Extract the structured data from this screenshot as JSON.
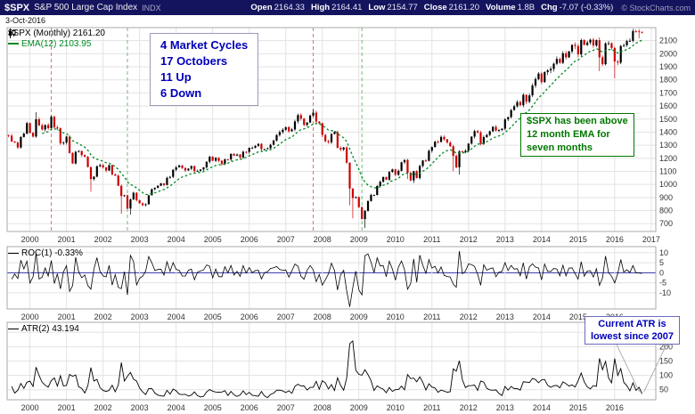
{
  "header": {
    "symbol": "$SPX",
    "name": "S&P 500 Large Cap Index",
    "exchange": "INDX",
    "date": "3-Oct-2016",
    "credit": "© StockCharts.com",
    "quote": [
      {
        "label": "Open",
        "value": "2164.33"
      },
      {
        "label": "High",
        "value": "2164.41"
      },
      {
        "label": "Low",
        "value": "2154.77"
      },
      {
        "label": "Close",
        "value": "2161.20"
      },
      {
        "label": "Volume",
        "value": "1.8B"
      },
      {
        "label": "Chg",
        "value": "-7.07 (-0.33%)"
      }
    ]
  },
  "annotations": {
    "cycles": {
      "lines": [
        "4 Market Cycles",
        "17 Octobers",
        "11 Up",
        "6 Down"
      ]
    },
    "ema_note": {
      "lines": [
        "$SPX has been above",
        "12 month EMA for",
        "seven months"
      ]
    },
    "atr_note": {
      "lines": [
        "Current ATR is",
        "lowest since 2007"
      ]
    }
  },
  "chart_data": [
    {
      "type": "candlestick",
      "title": "$SPX (Monthly)",
      "legend_price": "$SPX (Monthly) 2161.20",
      "legend_ema": "EMA(12) 2103.95",
      "start": "1999-06",
      "interval": "monthly",
      "ylim": [
        640,
        2200
      ],
      "y_ticks": [
        2100,
        2000,
        1900,
        1800,
        1700,
        1600,
        1500,
        1400,
        1300,
        1200,
        1100,
        1000,
        900,
        800,
        700
      ],
      "x_year_labels": [
        2000,
        2001,
        2002,
        2003,
        2004,
        2005,
        2006,
        2007,
        2008,
        2009,
        2010,
        2011,
        2012,
        2013,
        2014,
        2015,
        2016,
        2017
      ],
      "closes": [
        1372.7,
        1328.7,
        1320.4,
        1282.7,
        1362.9,
        1388.9,
        1469.3,
        1394.5,
        1366.4,
        1498.6,
        1452.4,
        1420.6,
        1454.6,
        1430.8,
        1517.7,
        1436.5,
        1429.4,
        1315.0,
        1320.3,
        1366.0,
        1239.9,
        1160.3,
        1249.5,
        1255.8,
        1224.4,
        1211.2,
        1133.6,
        1040.9,
        1059.8,
        1139.5,
        1148.1,
        1130.2,
        1106.7,
        1147.4,
        1076.9,
        1067.1,
        989.8,
        911.6,
        916.1,
        815.3,
        885.8,
        936.3,
        879.8,
        855.7,
        841.2,
        848.2,
        916.9,
        963.6,
        974.5,
        990.3,
        1008.0,
        996.0,
        1050.7,
        1058.2,
        1111.9,
        1131.1,
        1144.9,
        1126.2,
        1107.3,
        1120.7,
        1140.8,
        1101.7,
        1104.2,
        1114.6,
        1130.2,
        1173.8,
        1211.9,
        1181.3,
        1203.6,
        1180.6,
        1156.9,
        1191.5,
        1191.3,
        1234.2,
        1220.3,
        1228.8,
        1207.0,
        1249.5,
        1248.3,
        1280.1,
        1280.7,
        1294.8,
        1310.6,
        1270.1,
        1270.2,
        1276.7,
        1303.8,
        1335.9,
        1377.9,
        1400.6,
        1418.3,
        1438.2,
        1406.8,
        1420.9,
        1482.4,
        1530.6,
        1503.4,
        1455.3,
        1474.0,
        1526.8,
        1549.4,
        1481.1,
        1468.4,
        1378.6,
        1330.6,
        1322.7,
        1385.6,
        1400.4,
        1280.0,
        1267.4,
        1282.8,
        1166.4,
        968.8,
        896.2,
        903.3,
        825.9,
        735.1,
        797.9,
        872.8,
        919.1,
        919.3,
        987.5,
        1020.6,
        1057.1,
        1036.2,
        1095.6,
        1115.1,
        1073.9,
        1104.5,
        1169.4,
        1186.7,
        1089.4,
        1030.7,
        1101.6,
        1049.3,
        1141.2,
        1183.3,
        1180.6,
        1257.6,
        1286.1,
        1327.2,
        1325.8,
        1363.6,
        1345.2,
        1320.6,
        1292.3,
        1218.9,
        1131.4,
        1253.3,
        1247.0,
        1257.6,
        1312.4,
        1365.7,
        1408.5,
        1397.9,
        1310.3,
        1362.2,
        1379.3,
        1406.6,
        1440.7,
        1412.2,
        1416.2,
        1426.2,
        1498.1,
        1514.7,
        1569.2,
        1597.6,
        1630.7,
        1606.3,
        1685.7,
        1633.0,
        1681.6,
        1756.5,
        1805.8,
        1848.4,
        1782.6,
        1859.5,
        1872.3,
        1884.0,
        1923.6,
        1960.2,
        1930.7,
        2003.4,
        1972.3,
        2018.1,
        2067.6,
        2058.9,
        1995.0,
        2104.5,
        2067.9,
        2085.5,
        2107.4,
        2063.1,
        2103.8,
        1972.2,
        1920.0,
        2079.4,
        2080.4,
        2043.9,
        1940.2,
        1932.2,
        2059.7,
        2065.3,
        2096.9,
        2098.9,
        2173.6,
        2170.9,
        2168.3,
        2161.2
      ],
      "extremes": {
        "2000-03": {
          "high": 1552.9
        },
        "2001-09": {
          "low": 944.8
        },
        "2002-07": {
          "low": 775.7
        },
        "2002-10": {
          "low": 768.6
        },
        "2007-10": {
          "high": 1576.1
        },
        "2008-10": {
          "low": 839.8
        },
        "2008-11": {
          "low": 741.0
        },
        "2009-03": {
          "low": 666.8
        },
        "2010-05": {
          "low": 1040.8
        },
        "2010-07": {
          "low": 1010.9
        },
        "2011-08": {
          "low": 1101.5
        },
        "2011-10": {
          "low": 1074.8
        },
        "2015-08": {
          "low": 1867.0
        },
        "2016-01": {
          "low": 1812.3
        },
        "2016-09": {
          "high": 2187.9,
          "low": 2119.1
        },
        "2016-10": {
          "high": 2164.4,
          "low": 2154.8
        }
      },
      "cycle_lines": [
        {
          "month": "2000-08",
          "color": "#cc5555"
        },
        {
          "month": "2002-09",
          "color": "#55aa55"
        },
        {
          "month": "2007-10",
          "color": "#cc5555"
        },
        {
          "month": "2009-02",
          "color": "#55aa55"
        }
      ],
      "colors": {
        "up": "#000000",
        "down": "#cc0000",
        "ema": "#008822"
      }
    },
    {
      "type": "line",
      "title": "ROC(1)",
      "legend": "ROC(1) -0.33%",
      "derived_from": "monthly closes: 1-month rate of change %",
      "ylim": [
        -18,
        13
      ],
      "y_ticks": [
        10,
        5,
        0,
        -5,
        -10
      ],
      "zero_line_color": "#3333aa",
      "x_year_labels": [
        2000,
        2001,
        2002,
        2003,
        2004,
        2005,
        2006,
        2007,
        2008,
        2009,
        2010,
        2011,
        2012,
        2013,
        2014,
        2015,
        2016
      ],
      "line_color": "#000000"
    },
    {
      "type": "line",
      "title": "ATR(2)",
      "legend": "ATR(2) 43.194",
      "derived_from": "monthly true range, Wilder-smoothed over 2 periods",
      "ylim": [
        15,
        285
      ],
      "y_ticks": [
        250,
        200,
        150,
        100,
        50
      ],
      "x_year_labels": [
        2000,
        2001,
        2002,
        2003,
        2004,
        2005,
        2006,
        2007,
        2008,
        2009,
        2010,
        2011,
        2012,
        2013,
        2014,
        2015,
        2016
      ],
      "line_color": "#000000"
    }
  ]
}
